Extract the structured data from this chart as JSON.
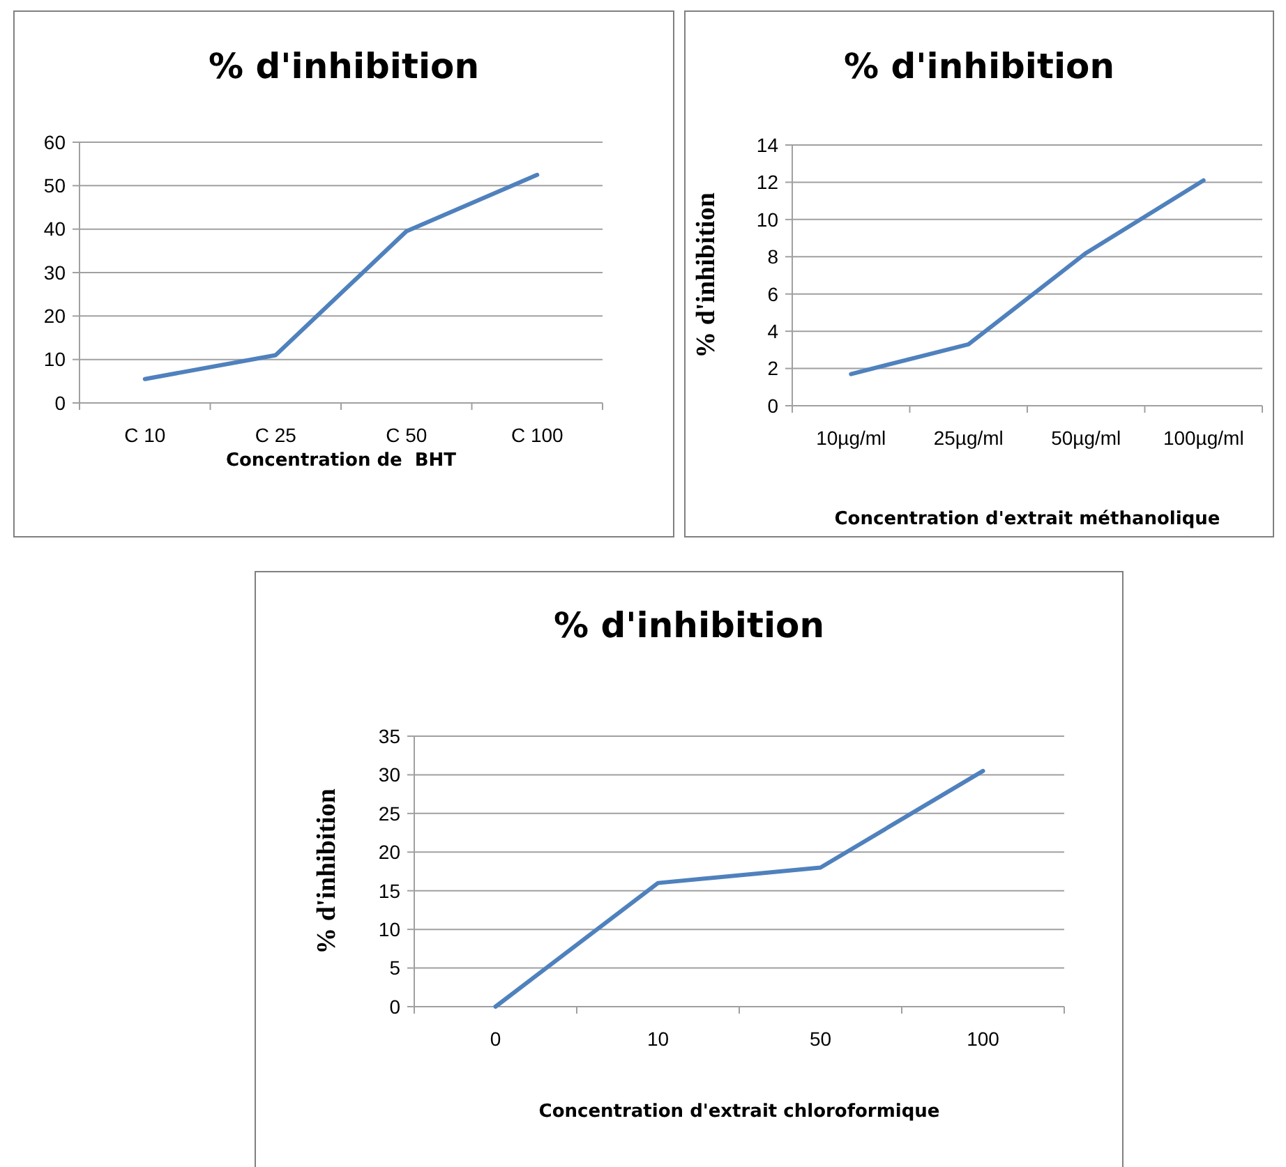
{
  "chart_data": [
    {
      "type": "line",
      "title": "% d'inhibition",
      "xlabel": "Concentration de  BHT",
      "categories": [
        "C 10",
        "C 25",
        "C 50",
        "C 100"
      ],
      "series": [
        {
          "color": "#4f81bd",
          "values": [
            5.5,
            11,
            39.5,
            52.5
          ]
        }
      ],
      "ylim": [
        0,
        60
      ],
      "yticks": [
        0,
        10,
        20,
        30,
        40,
        50,
        60
      ],
      "grid": "y"
    },
    {
      "type": "line",
      "title": "% d'inhibition",
      "xlabel": "Concentration d'extrait méthanolique",
      "ylabel": "% d'inhibition",
      "categories": [
        "10µg/ml",
        "25µg/ml",
        "50µg/ml",
        "100µg/ml"
      ],
      "series": [
        {
          "color": "#4f81bd",
          "values": [
            1.7,
            3.3,
            8.2,
            12.1
          ]
        }
      ],
      "ylim": [
        0,
        14
      ],
      "yticks": [
        0,
        2,
        4,
        6,
        8,
        10,
        12,
        14
      ],
      "grid": "y"
    },
    {
      "type": "line",
      "title": "% d'inhibition",
      "xlabel": "Concentration d'extrait chloroformique",
      "ylabel": "% d'inhibition",
      "categories": [
        "0",
        "10",
        "50",
        "100"
      ],
      "series": [
        {
          "color": "#4f81bd",
          "values": [
            0,
            16,
            18,
            30.5
          ]
        }
      ],
      "ylim": [
        0,
        35
      ],
      "yticks": [
        0,
        5,
        10,
        15,
        20,
        25,
        30,
        35
      ],
      "grid": "y"
    }
  ]
}
